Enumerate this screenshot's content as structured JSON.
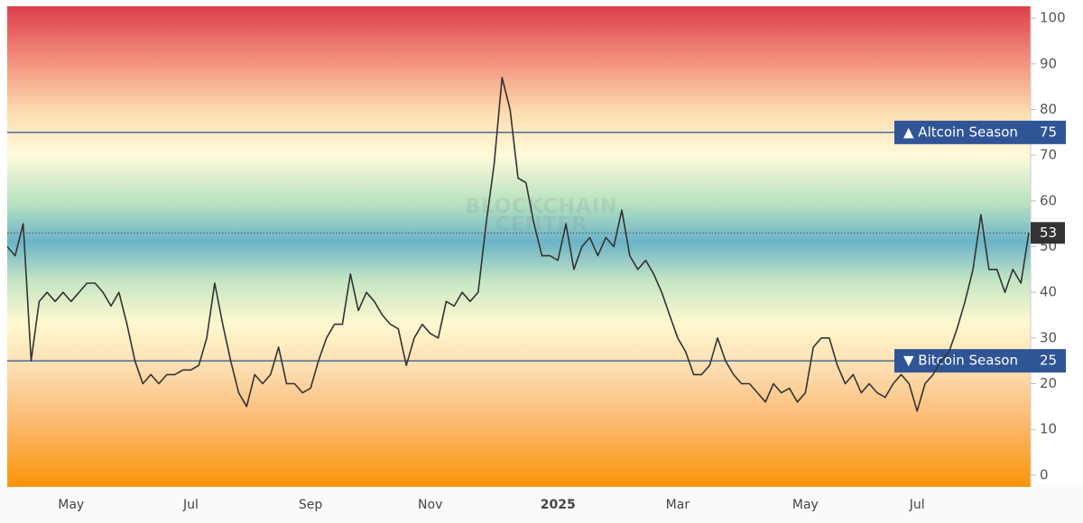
{
  "chart_data": {
    "type": "line",
    "watermark": [
      "BLOCKCHAIN",
      "CENTER"
    ],
    "categories": [
      null,
      null,
      null,
      null,
      null,
      null,
      null,
      null,
      "May",
      null,
      null,
      null,
      null,
      null,
      null,
      null,
      null,
      null,
      null,
      null,
      null,
      null,
      null,
      "Jul",
      null,
      null,
      null,
      null,
      null,
      null,
      null,
      null,
      null,
      null,
      null,
      null,
      null,
      null,
      "Sep",
      null,
      null,
      null,
      null,
      null,
      null,
      null,
      null,
      null,
      null,
      null,
      null,
      null,
      null,
      "Nov",
      null,
      null,
      null,
      null,
      null,
      null,
      null,
      null,
      null,
      null,
      null,
      null,
      null,
      null,
      null,
      "2025",
      null,
      null,
      null,
      null,
      null,
      null,
      null,
      null,
      null,
      null,
      null,
      null,
      null,
      null,
      "Mar",
      null,
      null,
      null,
      null,
      null,
      null,
      null,
      null,
      null,
      null,
      null,
      null,
      null,
      null,
      null,
      "May",
      null,
      null,
      null,
      null,
      null,
      null,
      null,
      null,
      null,
      null,
      null,
      null,
      null,
      "Jul",
      null,
      null,
      null,
      null,
      null,
      null,
      null,
      null,
      null,
      null,
      null,
      null,
      null,
      null
    ],
    "values": [
      50,
      48,
      55,
      25,
      38,
      40,
      38,
      40,
      38,
      40,
      42,
      42,
      40,
      37,
      40,
      33,
      25,
      20,
      22,
      20,
      22,
      22,
      23,
      23,
      24,
      30,
      42,
      33,
      25,
      18,
      15,
      22,
      20,
      22,
      28,
      20,
      20,
      18,
      19,
      25,
      30,
      33,
      33,
      44,
      36,
      40,
      38,
      35,
      33,
      32,
      24,
      30,
      33,
      31,
      30,
      38,
      37,
      40,
      38,
      40,
      55,
      68,
      87,
      80,
      65,
      64,
      55,
      48,
      48,
      47,
      55,
      45,
      50,
      52,
      48,
      52,
      50,
      58,
      48,
      45,
      47,
      44,
      40,
      35,
      30,
      27,
      22,
      22,
      24,
      30,
      25,
      22,
      20,
      20,
      18,
      16,
      20,
      18,
      19,
      16,
      18,
      28,
      30,
      30,
      24,
      20,
      22,
      18,
      20,
      18,
      17,
      20,
      22,
      20,
      14,
      20,
      22,
      25,
      27,
      32,
      38,
      45,
      57,
      45,
      45,
      40,
      45,
      42,
      53
    ],
    "color": "#333333",
    "ylim": [
      -2.6,
      102.6
    ],
    "yticks": [
      0,
      10,
      20,
      30,
      40,
      50,
      60,
      70,
      80,
      90,
      100
    ],
    "thresholds": [
      {
        "label": "▲ Altcoin Season",
        "value": 75
      },
      {
        "label": "▼ Bitcoin Season",
        "value": 25
      }
    ],
    "current_value": 53
  }
}
